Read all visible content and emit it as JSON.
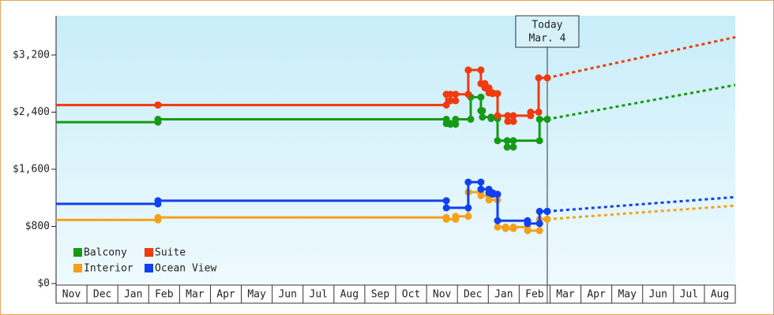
{
  "chart_data": {
    "type": "step",
    "categories": [
      "Nov",
      "Dec",
      "Jan",
      "Feb",
      "Mar",
      "Apr",
      "May",
      "Jun",
      "Jul",
      "Aug",
      "Sep",
      "Oct",
      "Nov",
      "Dec",
      "Jan",
      "Feb",
      "Mar",
      "Apr",
      "May",
      "Jun",
      "Jul",
      "Aug"
    ],
    "xlim": [
      0,
      22
    ],
    "ylim": [
      0,
      3750
    ],
    "yticks": [
      {
        "value": 0,
        "label": "$0"
      },
      {
        "value": 800,
        "label": "$800"
      },
      {
        "value": 1600,
        "label": "$1,600"
      },
      {
        "value": 2400,
        "label": "$2,400"
      },
      {
        "value": 3200,
        "label": "$3,200"
      }
    ],
    "legend": "lower left",
    "forecast_x": 22,
    "annotation": {
      "x": 15.91,
      "text": [
        "Today",
        "Mar. 4"
      ]
    },
    "series": [
      {
        "name": "Balcony",
        "color": "#169a16",
        "x": [
          0,
          3.3,
          12.64,
          12.77,
          12.94,
          13.43,
          13.76,
          13.81,
          14.09,
          14.3,
          14.61,
          14.81,
          15.66,
          15.91
        ],
        "values": [
          2260,
          2300,
          2240,
          2230,
          2300,
          2610,
          2420,
          2330,
          2310,
          2000,
          1910,
          2000,
          2300,
          2300
        ],
        "forecast": 2780
      },
      {
        "name": "Suite",
        "color": "#f03a10",
        "x": [
          0,
          3.3,
          12.64,
          12.77,
          12.94,
          13.35,
          13.76,
          13.89,
          14.02,
          14.14,
          14.3,
          14.63,
          14.81,
          15.37,
          15.63,
          15.91
        ],
        "values": [
          2500,
          2500,
          2650,
          2560,
          2650,
          2990,
          2800,
          2740,
          2670,
          2660,
          2350,
          2270,
          2350,
          2400,
          2880,
          2880
        ],
        "forecast": 3450
      },
      {
        "name": "Interior",
        "color": "#f5a01a",
        "x": [
          0,
          3.3,
          12.64,
          12.94,
          13.35,
          13.76,
          14.02,
          14.3,
          14.56,
          14.81,
          15.27,
          15.66,
          15.91
        ],
        "values": [
          890,
          925,
          900,
          940,
          1280,
          1230,
          1170,
          790,
          770,
          790,
          740,
          900,
          900
        ],
        "forecast": 1090
      },
      {
        "name": "Ocean View",
        "color": "#1040f0",
        "x": [
          0,
          3.3,
          12.64,
          13.35,
          13.76,
          14.02,
          14.14,
          14.3,
          15.27,
          15.66,
          15.91
        ],
        "values": [
          1115,
          1160,
          1060,
          1420,
          1320,
          1270,
          1250,
          880,
          840,
          1010,
          1010
        ],
        "forecast": 1210
      }
    ]
  }
}
